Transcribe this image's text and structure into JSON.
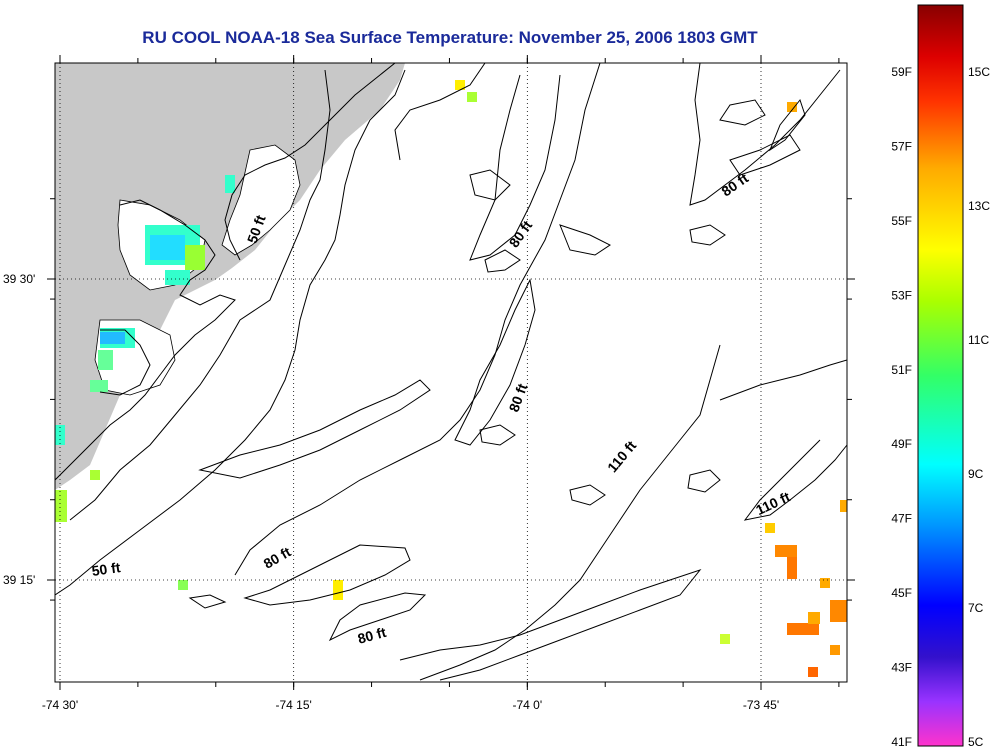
{
  "title": "RU COOL  NOAA-18  Sea Surface Temperature:  November 25, 2006 1803 GMT",
  "axes": {
    "x_ticks": [
      {
        "label": "-74 30'",
        "lon": -74.5
      },
      {
        "label": "-74 15'",
        "lon": -74.25
      },
      {
        "label": "-74 0'",
        "lon": -74.0
      },
      {
        "label": "-73 45'",
        "lon": -73.75
      }
    ],
    "y_ticks": [
      {
        "label": "39 30'",
        "lat": 39.5
      },
      {
        "label": "39 15'",
        "lat": 39.25
      }
    ]
  },
  "contour_labels": [
    {
      "text": "50 ft",
      "lon": -74.285,
      "lat": 39.54,
      "rotate": -70
    },
    {
      "text": "80 ft",
      "lon": -74.003,
      "lat": 39.535,
      "rotate": -55
    },
    {
      "text": "80 ft",
      "lon": -73.775,
      "lat": 39.575,
      "rotate": -35
    },
    {
      "text": "80 ft",
      "lon": -74.005,
      "lat": 39.4,
      "rotate": -70
    },
    {
      "text": "110 ft",
      "lon": -73.895,
      "lat": 39.35,
      "rotate": -50
    },
    {
      "text": "110 ft",
      "lon": -73.735,
      "lat": 39.31,
      "rotate": -25
    },
    {
      "text": "50 ft",
      "lon": -74.45,
      "lat": 39.255,
      "rotate": -8
    },
    {
      "text": "80 ft",
      "lon": -74.265,
      "lat": 39.265,
      "rotate": -30
    },
    {
      "text": "80 ft",
      "lon": -74.165,
      "lat": 39.2,
      "rotate": -15
    }
  ],
  "colorbar": {
    "fahrenheit": [
      "59F",
      "57F",
      "55F",
      "53F",
      "51F",
      "49F",
      "47F",
      "45F",
      "43F",
      "41F"
    ],
    "celsius": [
      "15C",
      "13C",
      "11C",
      "9C",
      "7C",
      "5C"
    ]
  },
  "colors": {
    "land": "#c8c8c8",
    "title": "#1a2a9a"
  }
}
